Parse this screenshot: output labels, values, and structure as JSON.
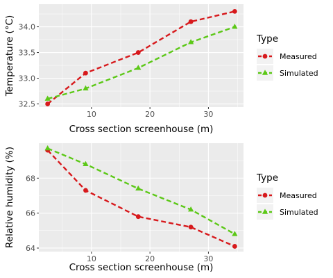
{
  "chart_data": [
    {
      "type": "line",
      "xlabel": "Cross section screenhouse (m)",
      "ylabel": "Temperature (°C)",
      "xlim": [
        1,
        36
      ],
      "ylim": [
        32.44,
        34.44
      ],
      "xticks": [
        10,
        20,
        30
      ],
      "yticks": [
        32.5,
        33.0,
        33.5,
        34.0
      ],
      "ytick_labels": [
        "32.5",
        "33.0",
        "33.5",
        "34.0"
      ],
      "grid": true,
      "legend": {
        "title": "Type",
        "position": "right"
      },
      "series": [
        {
          "name": "Measured",
          "color": "#d7191c",
          "marker": "circle",
          "linestyle": "dashed",
          "x": [
            2.5,
            9,
            18,
            27,
            34.5
          ],
          "y": [
            32.5,
            33.1,
            33.5,
            34.1,
            34.3
          ]
        },
        {
          "name": "Simulated",
          "color": "#5cc817",
          "marker": "triangle",
          "linestyle": "dashed",
          "x": [
            2.5,
            9,
            18,
            27,
            34.5
          ],
          "y": [
            32.6,
            32.8,
            33.2,
            33.7,
            34.0
          ]
        }
      ]
    },
    {
      "type": "line",
      "xlabel": "Cross section screenhouse (m)",
      "ylabel": "Relative humidity (%)",
      "xlim": [
        1,
        36
      ],
      "ylim": [
        63.8,
        70.0
      ],
      "xticks": [
        10,
        20,
        30
      ],
      "yticks": [
        64,
        66,
        68
      ],
      "ytick_labels": [
        "64",
        "66",
        "68"
      ],
      "grid": true,
      "legend": {
        "title": "Type",
        "position": "right"
      },
      "series": [
        {
          "name": "Measured",
          "color": "#d7191c",
          "marker": "circle",
          "linestyle": "dashed",
          "x": [
            2.5,
            9,
            18,
            27,
            34.5
          ],
          "y": [
            69.6,
            67.3,
            65.8,
            65.2,
            64.1
          ]
        },
        {
          "name": "Simulated",
          "color": "#5cc817",
          "marker": "triangle",
          "linestyle": "dashed",
          "x": [
            2.5,
            9,
            18,
            27,
            34.5
          ],
          "y": [
            69.7,
            68.8,
            67.4,
            66.2,
            64.8
          ]
        }
      ]
    }
  ]
}
